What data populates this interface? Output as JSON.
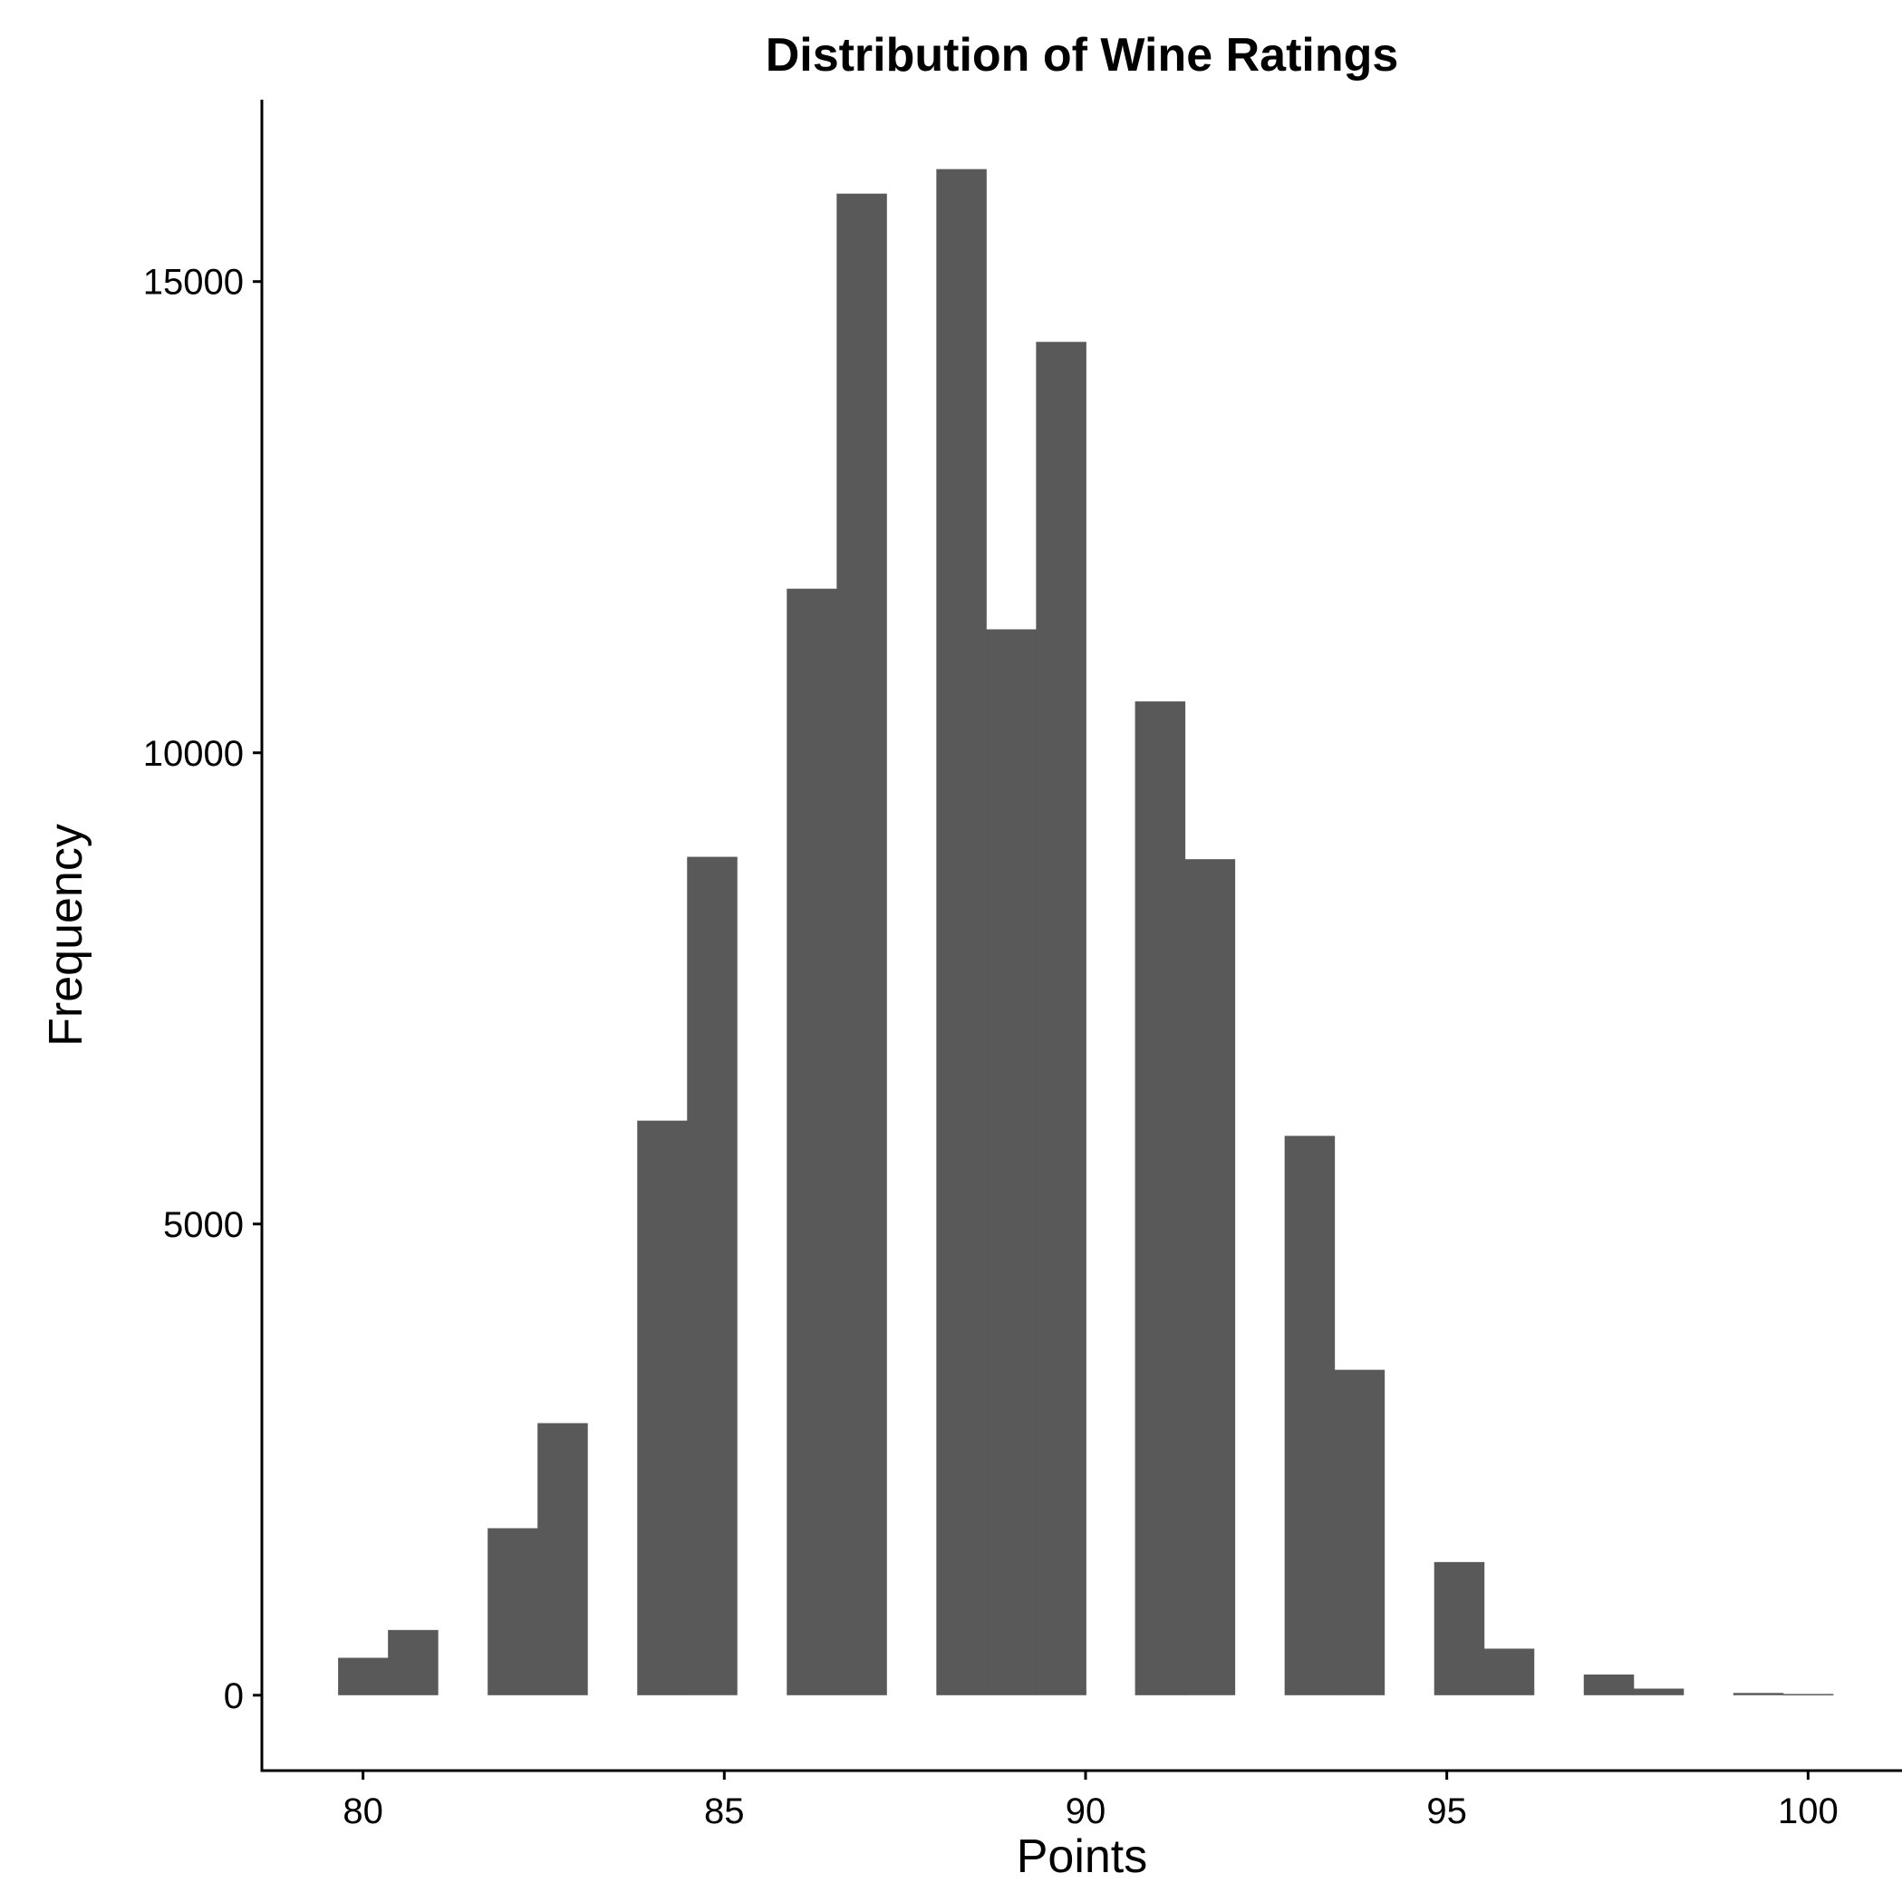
{
  "chart_data": {
    "type": "bar",
    "title": "Distribution of Wine Ratings",
    "xlabel": "Points",
    "ylabel": "Frequency",
    "bar_color": "#595959",
    "bin_width": 0.6897,
    "bins": [
      {
        "x": 80,
        "count": 397
      },
      {
        "x": 80.69,
        "count": 692
      },
      {
        "x": 81.38,
        "count": 0
      },
      {
        "x": 82.07,
        "count": 1772
      },
      {
        "x": 82.76,
        "count": 2887
      },
      {
        "x": 83.45,
        "count": 0
      },
      {
        "x": 84.14,
        "count": 6097
      },
      {
        "x": 84.83,
        "count": 8896
      },
      {
        "x": 85.52,
        "count": 0
      },
      {
        "x": 86.21,
        "count": 11741
      },
      {
        "x": 86.9,
        "count": 15933
      },
      {
        "x": 87.59,
        "count": 0
      },
      {
        "x": 88.28,
        "count": 16193
      },
      {
        "x": 88.97,
        "count": 11310
      },
      {
        "x": 89.66,
        "count": 14360
      },
      {
        "x": 90.34,
        "count": 0
      },
      {
        "x": 91.03,
        "count": 10545
      },
      {
        "x": 91.72,
        "count": 8871
      },
      {
        "x": 92.41,
        "count": 0
      },
      {
        "x": 93.1,
        "count": 5935
      },
      {
        "x": 93.79,
        "count": 3453
      },
      {
        "x": 94.48,
        "count": 0
      },
      {
        "x": 95.17,
        "count": 1413
      },
      {
        "x": 95.86,
        "count": 494
      },
      {
        "x": 96.55,
        "count": 0
      },
      {
        "x": 97.24,
        "count": 220
      },
      {
        "x": 97.93,
        "count": 70
      },
      {
        "x": 98.62,
        "count": 0
      },
      {
        "x": 99.31,
        "count": 24
      },
      {
        "x": 100,
        "count": 13
      }
    ],
    "xlim": [
      78.6,
      101.3
    ],
    "ylim": [
      -800,
      16930
    ],
    "xticks": [
      {
        "value": 80,
        "label": "80"
      },
      {
        "value": 85,
        "label": "85"
      },
      {
        "value": 90,
        "label": "90"
      },
      {
        "value": 95,
        "label": "95"
      },
      {
        "value": 100,
        "label": "100"
      }
    ],
    "yticks": [
      {
        "value": 0,
        "label": "0"
      },
      {
        "value": 5000,
        "label": "5000"
      },
      {
        "value": 10000,
        "label": "10000"
      },
      {
        "value": 15000,
        "label": "15000"
      }
    ],
    "grid": false,
    "legend": "none"
  }
}
